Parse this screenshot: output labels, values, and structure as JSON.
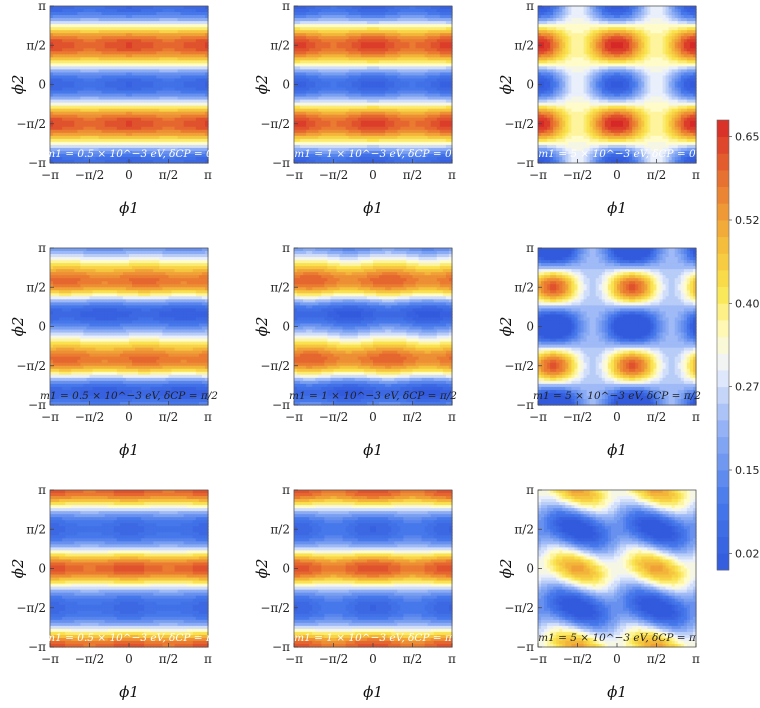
{
  "chart_data": {
    "type": "heatmap",
    "grid": "3x3",
    "x_ticks": [
      "−π",
      "−π/2",
      "0",
      "π/2",
      "π"
    ],
    "y_ticks": [
      "−π",
      "−π/2",
      "0",
      "π/2",
      "π"
    ],
    "xlabel": "ϕ1",
    "ylabel": "ϕ2",
    "xlim": [
      -3.14159,
      3.14159
    ],
    "ylim": [
      -3.14159,
      3.14159
    ],
    "colorbar": {
      "ticks": [
        "0.650",
        "0.525",
        "0.400",
        "0.275",
        "0.150",
        "0.025"
      ],
      "min": 0.0,
      "max": 0.675,
      "levels": 27,
      "colormap": "blue-white-yellow-orange-red"
    },
    "panels": [
      {
        "label": "m1 = 0.5 × 10^−3 eV, δCP = 0",
        "m1_meV": 0.5,
        "deltaCP": "0"
      },
      {
        "label": "m1 = 1 × 10^−3 eV, δCP = 0",
        "m1_meV": 1,
        "deltaCP": "0"
      },
      {
        "label": "m1 = 5 × 10^−3 eV, δCP = 0",
        "m1_meV": 5,
        "deltaCP": "0"
      },
      {
        "label": "m1 = 0.5 × 10^−3 eV, δCP = π/2",
        "m1_meV": 0.5,
        "deltaCP": "π/2"
      },
      {
        "label": "m1 = 1 × 10^−3 eV, δCP = π/2",
        "m1_meV": 1,
        "deltaCP": "π/2"
      },
      {
        "label": "m1 = 5 × 10^−3 eV, δCP = π/2",
        "m1_meV": 5,
        "deltaCP": "π/2"
      },
      {
        "label": "m1 = 0.5 × 10^−3 eV, δCP = π",
        "m1_meV": 0.5,
        "deltaCP": "π"
      },
      {
        "label": "m1 = 1 × 10^−3 eV, δCP = π",
        "m1_meV": 1,
        "deltaCP": "π"
      },
      {
        "label": "m1 = 5 × 10^−3 eV, δCP = π",
        "m1_meV": 5,
        "deltaCP": "π"
      }
    ]
  }
}
